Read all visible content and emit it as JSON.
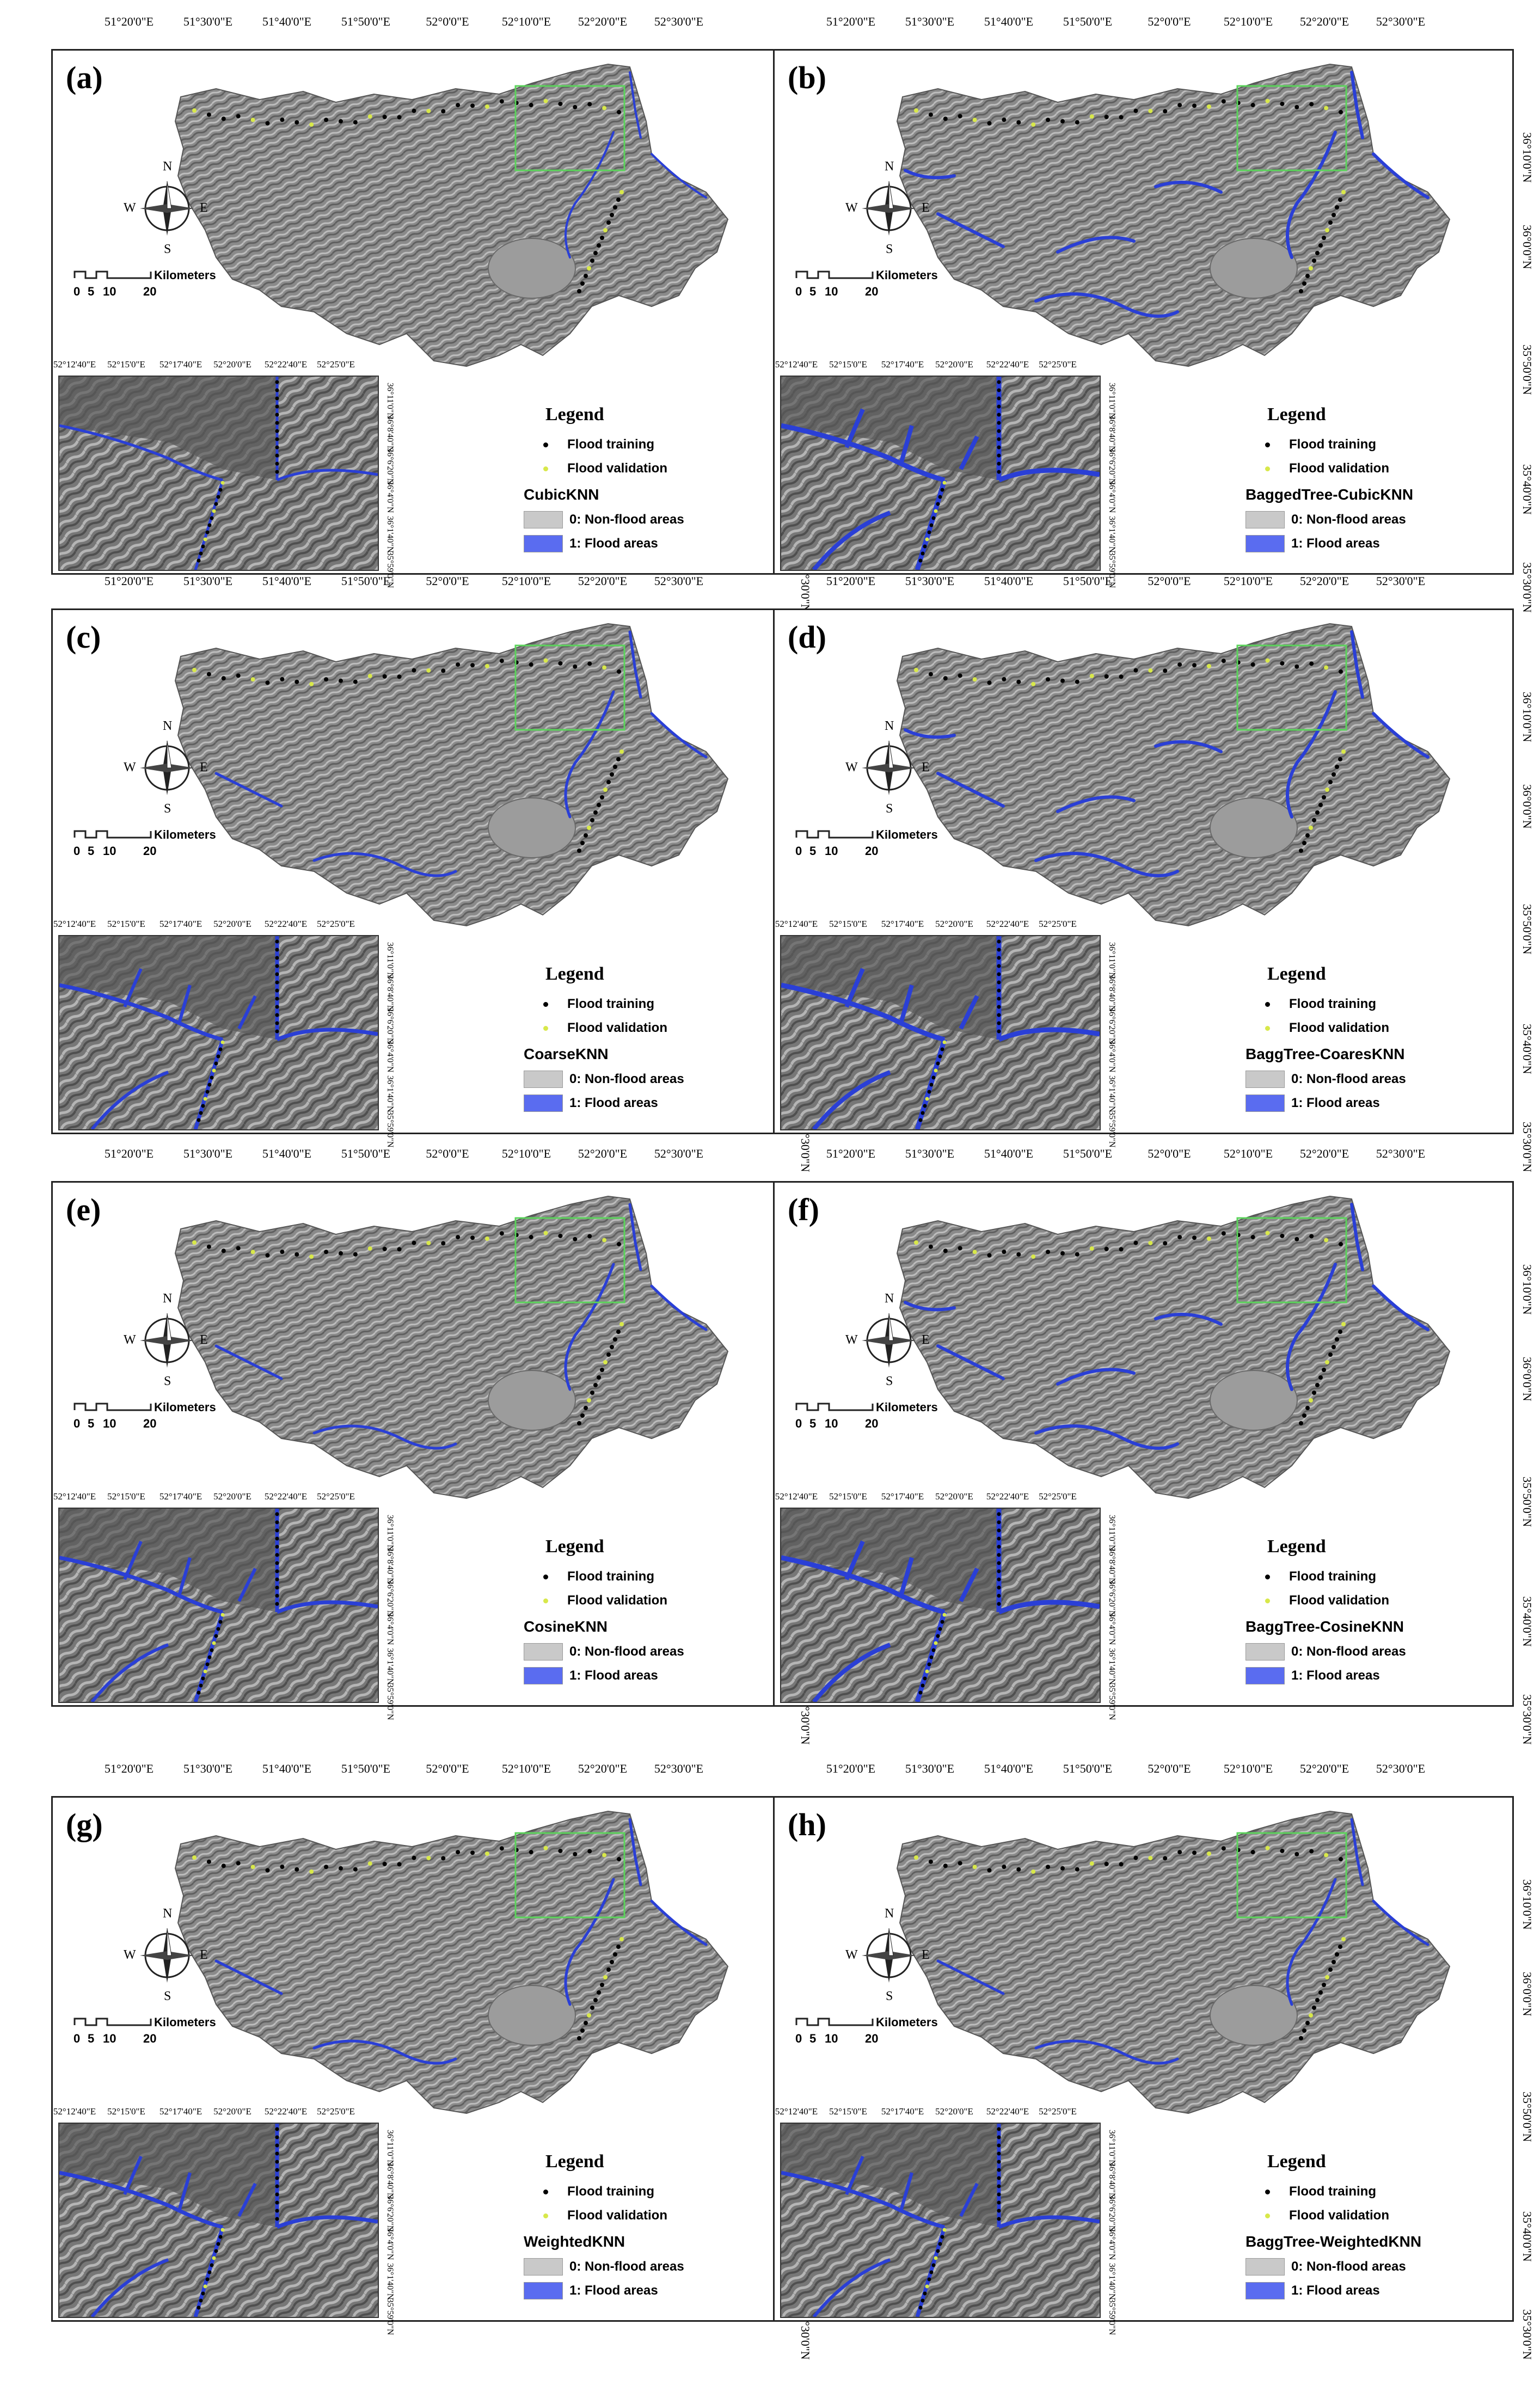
{
  "colors": {
    "terrain": "#8a8a8a",
    "terrain_dark": "#5f5f5f",
    "terrain_light": "#bdbdbd",
    "flood_blue": "#2a3fd6",
    "inset_box": "#5bd35b",
    "training_dot": "#000000",
    "validation_dot": "#d8e84a",
    "nonflood_swatch": "#c9c9c9",
    "flood_swatch": "#5a6cf0"
  },
  "top_ticks": [
    "51°20'0\"E",
    "51°30'0\"E",
    "51°40'0\"E",
    "51°50'0\"E",
    "52°0'0\"E",
    "52°10'0\"E",
    "52°20'0\"E",
    "52°30'0\"E"
  ],
  "side_ticks": [
    "36°10'0\"N",
    "36°0'0\"N",
    "35°50'0\"N",
    "35°40'0\"N",
    "35°30'0\"N"
  ],
  "inset_top_ticks": [
    "52°12'40\"E",
    "52°15'0\"E",
    "52°17'40\"E",
    "52°20'0\"E",
    "52°22'40\"E",
    "52°25'0\"E"
  ],
  "inset_side_ticks": [
    "36°11'0\"N",
    "36°8'40\"N",
    "36°6'20\"N",
    "36°4'0\"N",
    "36°1'40\"N",
    "35°59'0\"N"
  ],
  "compass": {
    "n": "N",
    "s": "S",
    "e": "E",
    "w": "W"
  },
  "scalebar": {
    "ticks": [
      "0",
      "5",
      "10",
      "20"
    ],
    "unit": "Kilometers"
  },
  "legend": {
    "title": "Legend",
    "training": "Flood training",
    "validation": "Flood validation",
    "nonflood": "0: Non-flood areas",
    "flood": "1: Flood areas"
  },
  "panels": [
    {
      "label": "(a)",
      "model": "CubicKNN",
      "flood_level": 1
    },
    {
      "label": "(b)",
      "model": "BaggedTree-CubicKNN",
      "flood_level": 3
    },
    {
      "label": "(c)",
      "model": "CoarseKNN",
      "flood_level": 2
    },
    {
      "label": "(d)",
      "model": "BaggTree-CoaresKNN",
      "flood_level": 3
    },
    {
      "label": "(e)",
      "model": "CosineKNN",
      "flood_level": 2
    },
    {
      "label": "(f)",
      "model": "BaggTree-CosineKNN",
      "flood_level": 3
    },
    {
      "label": "(g)",
      "model": "WeightedKNN",
      "flood_level": 2
    },
    {
      "label": "(h)",
      "model": "BaggTree-WeightedKNN",
      "flood_level": 2
    }
  ]
}
